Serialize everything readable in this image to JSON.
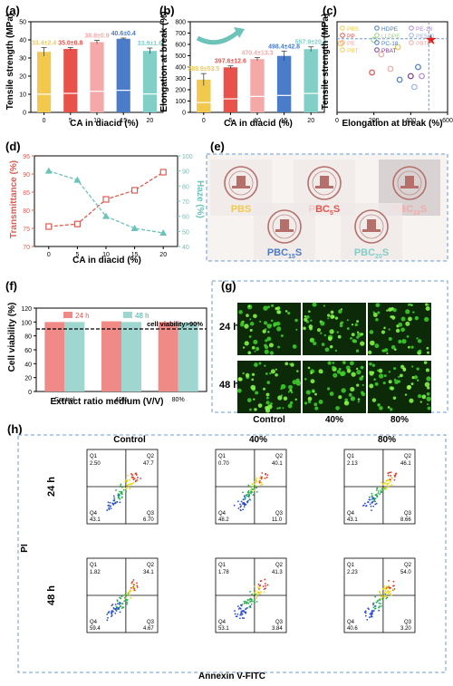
{
  "colors": {
    "c0": "#f2c94c",
    "c5": "#e8524a",
    "c10": "#f4a9a8",
    "c15": "#4a7cc9",
    "c20": "#82cfc8",
    "red": "#e05a50",
    "teal": "#6cc3b9",
    "dash": "#6a9bd8"
  },
  "panel_a": {
    "label": "(a)",
    "ylabel": "Tensile strength (MPa)",
    "xlabel": "CA in diacid (%)",
    "yticks": [
      "0",
      "10",
      "20",
      "30",
      "40",
      "50"
    ],
    "categories": [
      "0",
      "5",
      "10",
      "15",
      "20"
    ],
    "values": [
      33.4,
      35.0,
      38.8,
      40.6,
      33.9
    ],
    "errors": [
      2.4,
      0.8,
      0.9,
      0.4,
      1.6
    ],
    "labels": [
      "33.4±2.4",
      "35.0±0.8",
      "38.8±0.9",
      "40.6±0.4",
      "33.9±1.6"
    ]
  },
  "panel_b": {
    "label": "(b)",
    "ylabel": "Elongation at break (%)",
    "xlabel": "CA in diacid (%)",
    "yticks": [
      "0",
      "100",
      "200",
      "300",
      "400",
      "500",
      "600",
      "700",
      "800"
    ],
    "categories": [
      "0",
      "5",
      "10",
      "15",
      "20"
    ],
    "values": [
      288.9,
      397.6,
      470.4,
      498.4,
      557.9
    ],
    "errors": [
      53.5,
      12.6,
      13.3,
      42.8,
      20.6
    ],
    "labels": [
      "288.9±53.5",
      "397.6±12.6",
      "470.4±13.3",
      "498.4±42.8",
      "557.9±20.6"
    ]
  },
  "panel_c": {
    "label": "(c)",
    "ylabel": "Tensile strength (MPa)",
    "xlabel": "Elongation at break (%)",
    "xticks": [
      "0",
      "200",
      "400",
      "600"
    ],
    "legend": [
      "PBS",
      "PP",
      "PE",
      "PBT",
      "HDPE",
      "LLDPE",
      "PC-18",
      "PBAT",
      "PE-18",
      "PES10",
      "PBTF"
    ],
    "points": [
      {
        "name": "PBS",
        "x": 20,
        "y": 38
      },
      {
        "name": "PP",
        "x": 190,
        "y": 22
      },
      {
        "name": "PE",
        "x": 240,
        "y": 32
      },
      {
        "name": "PBT",
        "x": 330,
        "y": 36
      },
      {
        "name": "HDPE",
        "x": 440,
        "y": 25
      },
      {
        "name": "LLDPE",
        "x": 200,
        "y": 40
      },
      {
        "name": "PC-18",
        "x": 340,
        "y": 18
      },
      {
        "name": "PBAT",
        "x": 400,
        "y": 20
      },
      {
        "name": "PE-18",
        "x": 460,
        "y": 20
      },
      {
        "name": "PES10",
        "x": 420,
        "y": 14
      },
      {
        "name": "PBTF",
        "x": 290,
        "y": 24
      },
      {
        "name": "PBC",
        "x": 510,
        "y": 40
      }
    ]
  },
  "panel_d": {
    "label": "(d)",
    "ylabel_left": "Transmittance (%)",
    "ylabel_right": "Haze (%)",
    "xlabel": "CA in diacid (%)",
    "x": [
      "0",
      "5",
      "10",
      "15",
      "20"
    ],
    "yticks_left": [
      "70",
      "75",
      "80",
      "85",
      "90",
      "95"
    ],
    "yticks_right": [
      "40",
      "50",
      "60",
      "70",
      "80",
      "90",
      "100"
    ],
    "transmittance": [
      75.5,
      76.2,
      83.0,
      85.5,
      90.5
    ],
    "haze": [
      90,
      84,
      60,
      52,
      49
    ]
  },
  "panel_e": {
    "label": "(e)",
    "samples": [
      {
        "name": "PBS",
        "color": "#f2c94c"
      },
      {
        "name": "PBC",
        "sub": "5",
        "suffix": "S",
        "color": "#e8524a"
      },
      {
        "name": "PBC",
        "sub": "10",
        "suffix": "S",
        "color": "#f4a9a8"
      },
      {
        "name": "PBC",
        "sub": "15",
        "suffix": "S",
        "color": "#4a7cc9"
      },
      {
        "name": "PBC",
        "sub": "20",
        "suffix": "S",
        "color": "#82cfc8"
      }
    ]
  },
  "panel_f": {
    "label": "(f)",
    "ylabel": "Cell viability (%)",
    "xlabel": "Extract ratio medium (V/V)",
    "legend": [
      "24 h",
      "48 h"
    ],
    "categories": [
      "Control",
      "40%",
      "80%"
    ],
    "yticks": [
      "0",
      "20",
      "40",
      "60",
      "80",
      "100",
      "120"
    ],
    "h24": [
      100,
      101,
      100
    ],
    "h48": [
      100,
      100,
      99
    ],
    "annotation": "cell viability>90%"
  },
  "panel_g": {
    "label": "(g)",
    "rows": [
      "24 h",
      "48 h"
    ],
    "cols": [
      "Control",
      "40%",
      "80%"
    ]
  },
  "panel_h": {
    "label": "(h)",
    "cols": [
      "Control",
      "40%",
      "80%"
    ],
    "rows": [
      "24 h",
      "48 h"
    ],
    "ylabel": "PI",
    "xlabel": "Annexin V-FITC",
    "plots": [
      [
        {
          "q1": "2.50",
          "q2": "47.7",
          "q3": "6.70",
          "q4": "43.1"
        },
        {
          "q1": "0.70",
          "q2": "40.1",
          "q3": "11.0",
          "q4": "48.2"
        },
        {
          "q1": "2.13",
          "q2": "46.1",
          "q3": "8.66",
          "q4": "43.1"
        }
      ],
      [
        {
          "q1": "1.82",
          "q2": "34.1",
          "q3": "4.67",
          "q4": "59.4"
        },
        {
          "q1": "1.78",
          "q2": "41.3",
          "q3": "3.84",
          "q4": "53.1"
        },
        {
          "q1": "2.23",
          "q2": "54.0",
          "q3": "3.20",
          "q4": "40.6"
        }
      ]
    ]
  }
}
